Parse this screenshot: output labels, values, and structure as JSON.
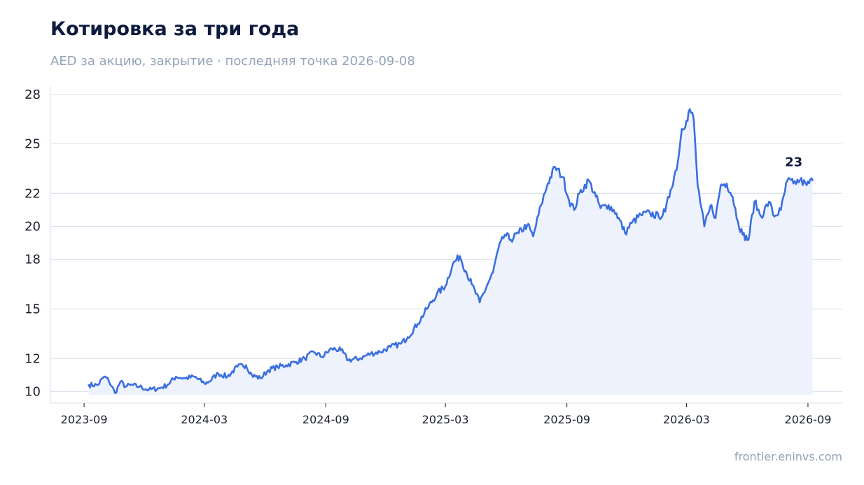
{
  "header": {
    "title": "Котировка за три года",
    "subtitle": "AED за акцию, закрытие · последняя точка 2026-09-08"
  },
  "footer": {
    "source": "frontier.eninvs.com"
  },
  "chart_data": {
    "type": "area",
    "title": "Котировка за три года",
    "subtitle": "AED за акцию, закрытие · последняя точка 2026-09-08",
    "xlabel": "",
    "ylabel": "",
    "x_ticks": [
      "2023-09",
      "2024-03",
      "2024-09",
      "2025-03",
      "2025-09",
      "2026-03",
      "2026-09"
    ],
    "y_ticks": [
      10,
      12,
      15,
      18,
      20,
      22,
      25,
      28
    ],
    "ylim": [
      9.3,
      28.5
    ],
    "xlim": [
      "2023-07-12",
      "2026-10-23"
    ],
    "grid": "horizontal",
    "line_color": "#3b6fe0",
    "fill_color": "#edf2fd",
    "last_value_label": "23",
    "x": [
      "2023-09-08",
      "2023-09-22",
      "2023-10-01",
      "2023-10-08",
      "2023-10-18",
      "2023-10-26",
      "2023-11-03",
      "2023-11-10",
      "2023-11-24",
      "2023-12-08",
      "2023-12-24",
      "2024-01-05",
      "2024-01-18",
      "2024-02-01",
      "2024-02-15",
      "2024-03-01",
      "2024-03-08",
      "2024-03-22",
      "2024-04-05",
      "2024-04-20",
      "2024-05-03",
      "2024-05-12",
      "2024-05-25",
      "2024-06-06",
      "2024-06-20",
      "2024-07-03",
      "2024-07-18",
      "2024-07-31",
      "2024-08-14",
      "2024-08-26",
      "2024-09-10",
      "2024-09-24",
      "2024-10-05",
      "2024-10-22",
      "2024-11-08",
      "2024-11-22",
      "2024-12-08",
      "2024-12-24",
      "2025-01-03",
      "2025-01-18",
      "2025-02-01",
      "2025-02-16",
      "2025-03-01",
      "2025-03-12",
      "2025-03-23",
      "2025-04-01",
      "2025-04-10",
      "2025-04-22",
      "2025-05-05",
      "2025-05-12",
      "2025-05-20",
      "2025-05-30",
      "2025-06-08",
      "2025-06-20",
      "2025-07-03",
      "2025-07-12",
      "2025-07-24",
      "2025-08-03",
      "2025-08-14",
      "2025-08-26",
      "2025-09-04",
      "2025-09-12",
      "2025-09-20",
      "2025-10-04",
      "2025-10-15",
      "2025-10-22",
      "2025-11-03",
      "2025-11-15",
      "2025-11-28",
      "2025-12-08",
      "2025-12-22",
      "2026-01-05",
      "2026-01-18",
      "2026-01-28",
      "2026-02-05",
      "2026-02-16",
      "2026-02-22",
      "2026-03-01",
      "2026-03-06",
      "2026-03-12",
      "2026-03-18",
      "2026-03-28",
      "2026-04-08",
      "2026-04-14",
      "2026-04-22",
      "2026-05-01",
      "2026-05-10",
      "2026-05-18",
      "2026-05-25",
      "2026-06-03",
      "2026-06-12",
      "2026-06-22",
      "2026-07-04",
      "2026-07-12",
      "2026-07-22",
      "2026-08-01",
      "2026-08-10",
      "2026-08-20",
      "2026-08-30",
      "2026-09-08"
    ],
    "series": [
      {
        "values": [
          10.4,
          10.4,
          10.9,
          10.7,
          9.9,
          10.6,
          10.3,
          10.4,
          10.3,
          10.1,
          10.2,
          10.4,
          10.9,
          10.8,
          10.9,
          10.5,
          10.6,
          11.1,
          10.9,
          11.5,
          11.6,
          11.0,
          10.8,
          11.3,
          11.5,
          11.6,
          11.8,
          12.0,
          12.4,
          12.1,
          12.6,
          12.5,
          11.9,
          12.0,
          12.3,
          12.4,
          12.7,
          12.9,
          13.3,
          14.1,
          15.0,
          15.9,
          16.4,
          17.7,
          18.2,
          17.3,
          16.5,
          15.4,
          16.6,
          17.2,
          18.6,
          19.5,
          19.2,
          19.6,
          20.1,
          19.4,
          21.3,
          22.6,
          23.6,
          23.0,
          21.6,
          21.0,
          22.0,
          22.8,
          21.8,
          21.1,
          21.3,
          20.8,
          19.6,
          20.2,
          20.7,
          20.8,
          20.6,
          20.9,
          22.2,
          23.9,
          25.9,
          26.4,
          27.1,
          26.5,
          22.5,
          20.0,
          21.3,
          20.5,
          22.5,
          22.6,
          21.8,
          20.3,
          19.5,
          19.2,
          21.5,
          20.6,
          21.5,
          20.6,
          21.0,
          22.8,
          22.6,
          22.8,
          22.5,
          22.8
        ]
      }
    ]
  }
}
